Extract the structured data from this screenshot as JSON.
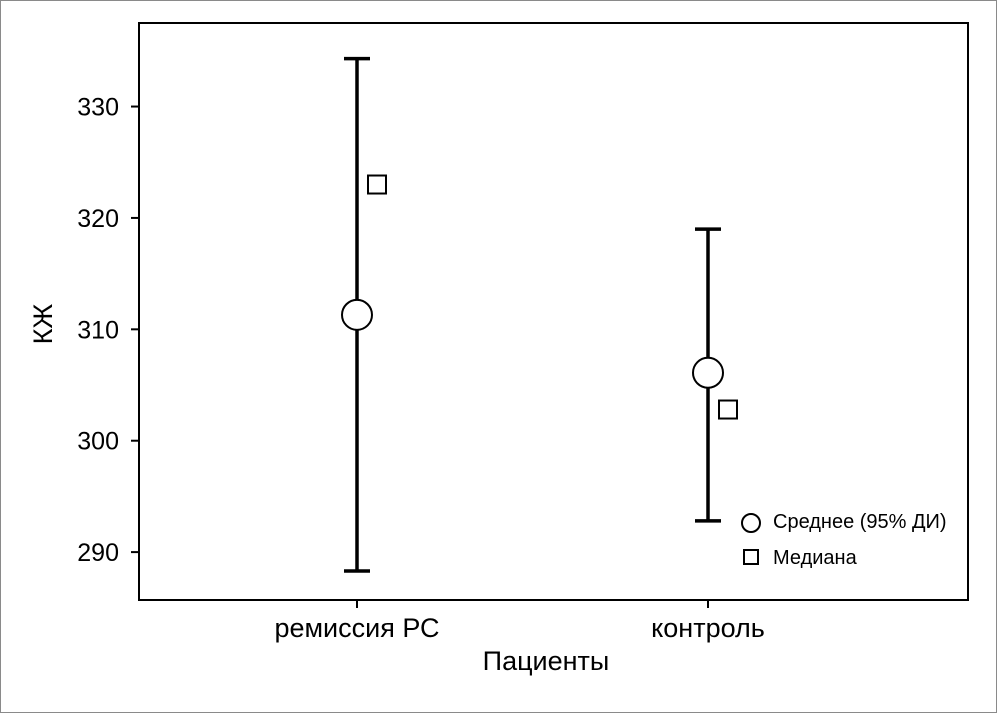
{
  "chart_data": {
    "type": "error-bar",
    "xlabel": "Пациенты",
    "ylabel": "КЖ",
    "ylim": [
      285.7,
      337.5
    ],
    "yticks": [
      290,
      300,
      310,
      320,
      330
    ],
    "categories": [
      "ремиссия РС",
      "контроль"
    ],
    "groups": [
      {
        "category": "ремиссия РС",
        "mean": 311.3,
        "ci_low": 288.3,
        "ci_high": 334.3,
        "median": 323.0
      },
      {
        "category": "контроль",
        "mean": 306.1,
        "ci_low": 292.8,
        "ci_high": 319.0,
        "median": 302.8
      }
    ],
    "legend": {
      "position": "bottom-right",
      "items": [
        {
          "marker": "circle",
          "label": "Среднее (95% ДИ)"
        },
        {
          "marker": "square",
          "label": "Медиана"
        }
      ]
    },
    "grid": false,
    "colors": {
      "line": "#000000",
      "marker_fill": "#ffffff",
      "border": "#8a8a8a"
    }
  }
}
